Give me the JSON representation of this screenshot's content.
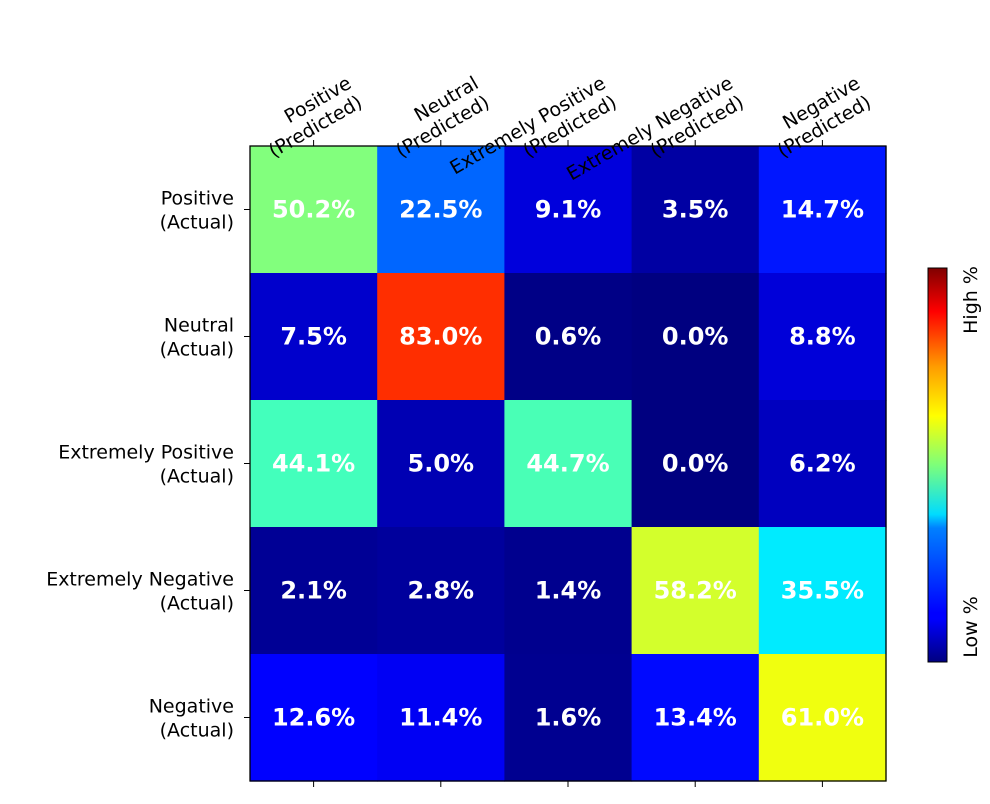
{
  "chart_data": {
    "type": "heatmap",
    "title": "",
    "columns": [
      [
        "Positive",
        "(Predicted)"
      ],
      [
        "Neutral",
        "(Predicted)"
      ],
      [
        "Extremely Positive",
        "(Predicted)"
      ],
      [
        "Extremely Negative",
        "(Predicted)"
      ],
      [
        "Negative",
        "(Predicted)"
      ]
    ],
    "rows": [
      [
        "Positive",
        "(Actual)"
      ],
      [
        "Neutral",
        "(Actual)"
      ],
      [
        "Extremely Positive",
        "(Actual)"
      ],
      [
        "Extremely Negative",
        "(Actual)"
      ],
      [
        "Negative",
        "(Actual)"
      ]
    ],
    "values": [
      [
        50.2,
        22.5,
        9.1,
        3.5,
        14.7
      ],
      [
        7.5,
        83.0,
        0.6,
        0.0,
        8.8
      ],
      [
        44.1,
        5.0,
        44.7,
        0.0,
        6.2
      ],
      [
        2.1,
        2.8,
        1.4,
        58.2,
        35.5
      ],
      [
        12.6,
        11.4,
        1.6,
        13.4,
        61.0
      ]
    ],
    "value_suffix": "%",
    "colormap": "jet",
    "colorbar": {
      "low_label": "Low %",
      "high_label": "High %"
    },
    "vmin": 0,
    "vmax": 100
  }
}
